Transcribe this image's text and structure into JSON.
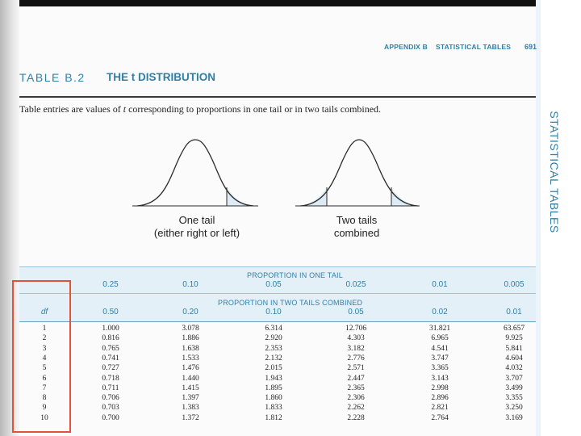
{
  "header": {
    "running_head": "APPENDIX B",
    "section": "STATISTICAL TABLES",
    "page_number": "691"
  },
  "table": {
    "number": "TABLE B.2",
    "title": "THE t DISTRIBUTION",
    "description_before": "Table entries are values of ",
    "description_var": "t",
    "description_after": " corresponding to proportions in one tail or in two tails combined.",
    "side_tab": "STATISTICAL TABLES"
  },
  "figures": {
    "one_tail_line1": "One tail",
    "one_tail_line2": "(either right or left)",
    "two_tails_line1": "Two tails",
    "two_tails_line2": "combined",
    "shade_color": "#dcebf4"
  },
  "columns": {
    "one_tail_header": "PROPORTION IN ONE TAIL",
    "two_tails_header": "PROPORTION IN TWO TAILS COMBINED",
    "df_header": "df",
    "one_tail": [
      "0.25",
      "0.10",
      "0.05",
      "0.025",
      "0.01",
      "0.005"
    ],
    "two_tails": [
      "0.50",
      "0.20",
      "0.10",
      "0.05",
      "0.02",
      "0.01"
    ]
  },
  "rows": [
    {
      "df": "1",
      "values": [
        "1.000",
        "3.078",
        "6.314",
        "12.706",
        "31.821",
        "63.657"
      ]
    },
    {
      "df": "2",
      "values": [
        "0.816",
        "1.886",
        "2.920",
        "4.303",
        "6.965",
        "9.925"
      ]
    },
    {
      "df": "3",
      "values": [
        "0.765",
        "1.638",
        "2.353",
        "3.182",
        "4.541",
        "5.841"
      ]
    },
    {
      "df": "4",
      "values": [
        "0.741",
        "1.533",
        "2.132",
        "2.776",
        "3.747",
        "4.604"
      ]
    },
    {
      "df": "5",
      "values": [
        "0.727",
        "1.476",
        "2.015",
        "2.571",
        "3.365",
        "4.032"
      ]
    },
    {
      "df": "6",
      "values": [
        "0.718",
        "1.440",
        "1.943",
        "2.447",
        "3.143",
        "3.707"
      ]
    },
    {
      "df": "7",
      "values": [
        "0.711",
        "1.415",
        "1.895",
        "2.365",
        "2.998",
        "3.499"
      ]
    },
    {
      "df": "8",
      "values": [
        "0.706",
        "1.397",
        "1.860",
        "2.306",
        "2.896",
        "3.355"
      ]
    },
    {
      "df": "9",
      "values": [
        "0.703",
        "1.383",
        "1.833",
        "2.262",
        "2.821",
        "3.250"
      ]
    },
    {
      "df": "10",
      "values": [
        "0.700",
        "1.372",
        "1.812",
        "2.228",
        "2.764",
        "3.169"
      ]
    }
  ],
  "colors": {
    "accent": "#2f7fa8",
    "highlight": "#e0533a"
  }
}
